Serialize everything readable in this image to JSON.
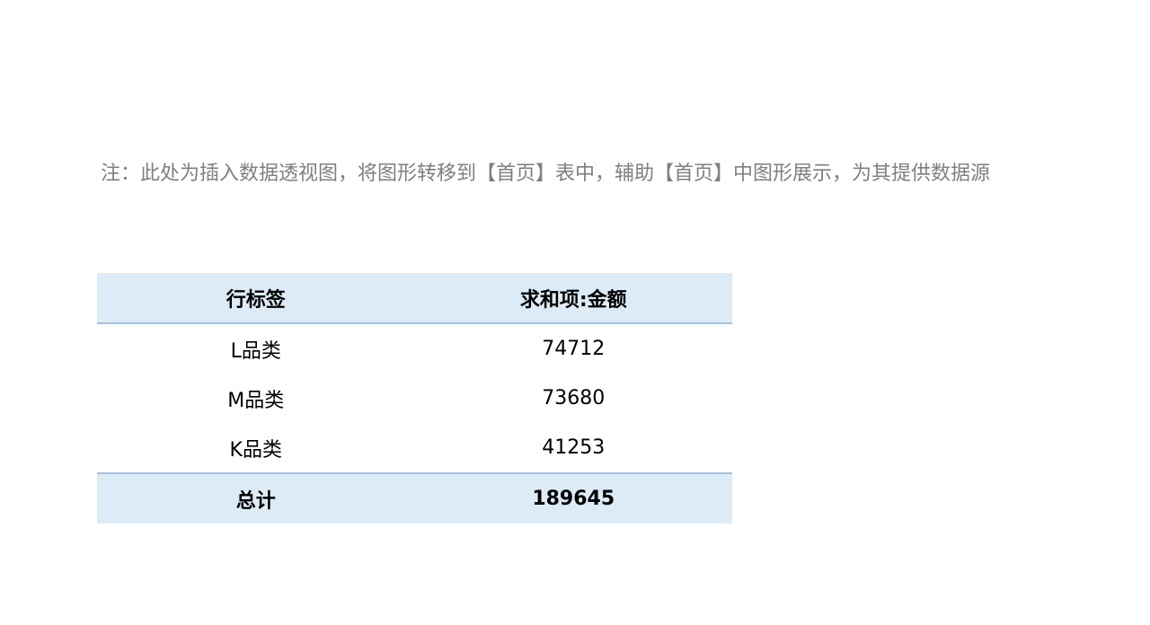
{
  "note": "注：此处为插入数据透视图，将图形转移到【首页】表中，辅助【首页】中图形展示，为其提供数据源",
  "table": {
    "headers": [
      "行标签",
      "求和项:金额"
    ],
    "rows": [
      [
        "L品类",
        "74712"
      ],
      [
        "M品类",
        "73680"
      ],
      [
        "K品类",
        "41253"
      ]
    ],
    "total": [
      "总计",
      "189645"
    ]
  },
  "colors": {
    "header_bg": "#ddebf7",
    "border": "#9dc3e6",
    "note_text": "#7f7f7f"
  }
}
